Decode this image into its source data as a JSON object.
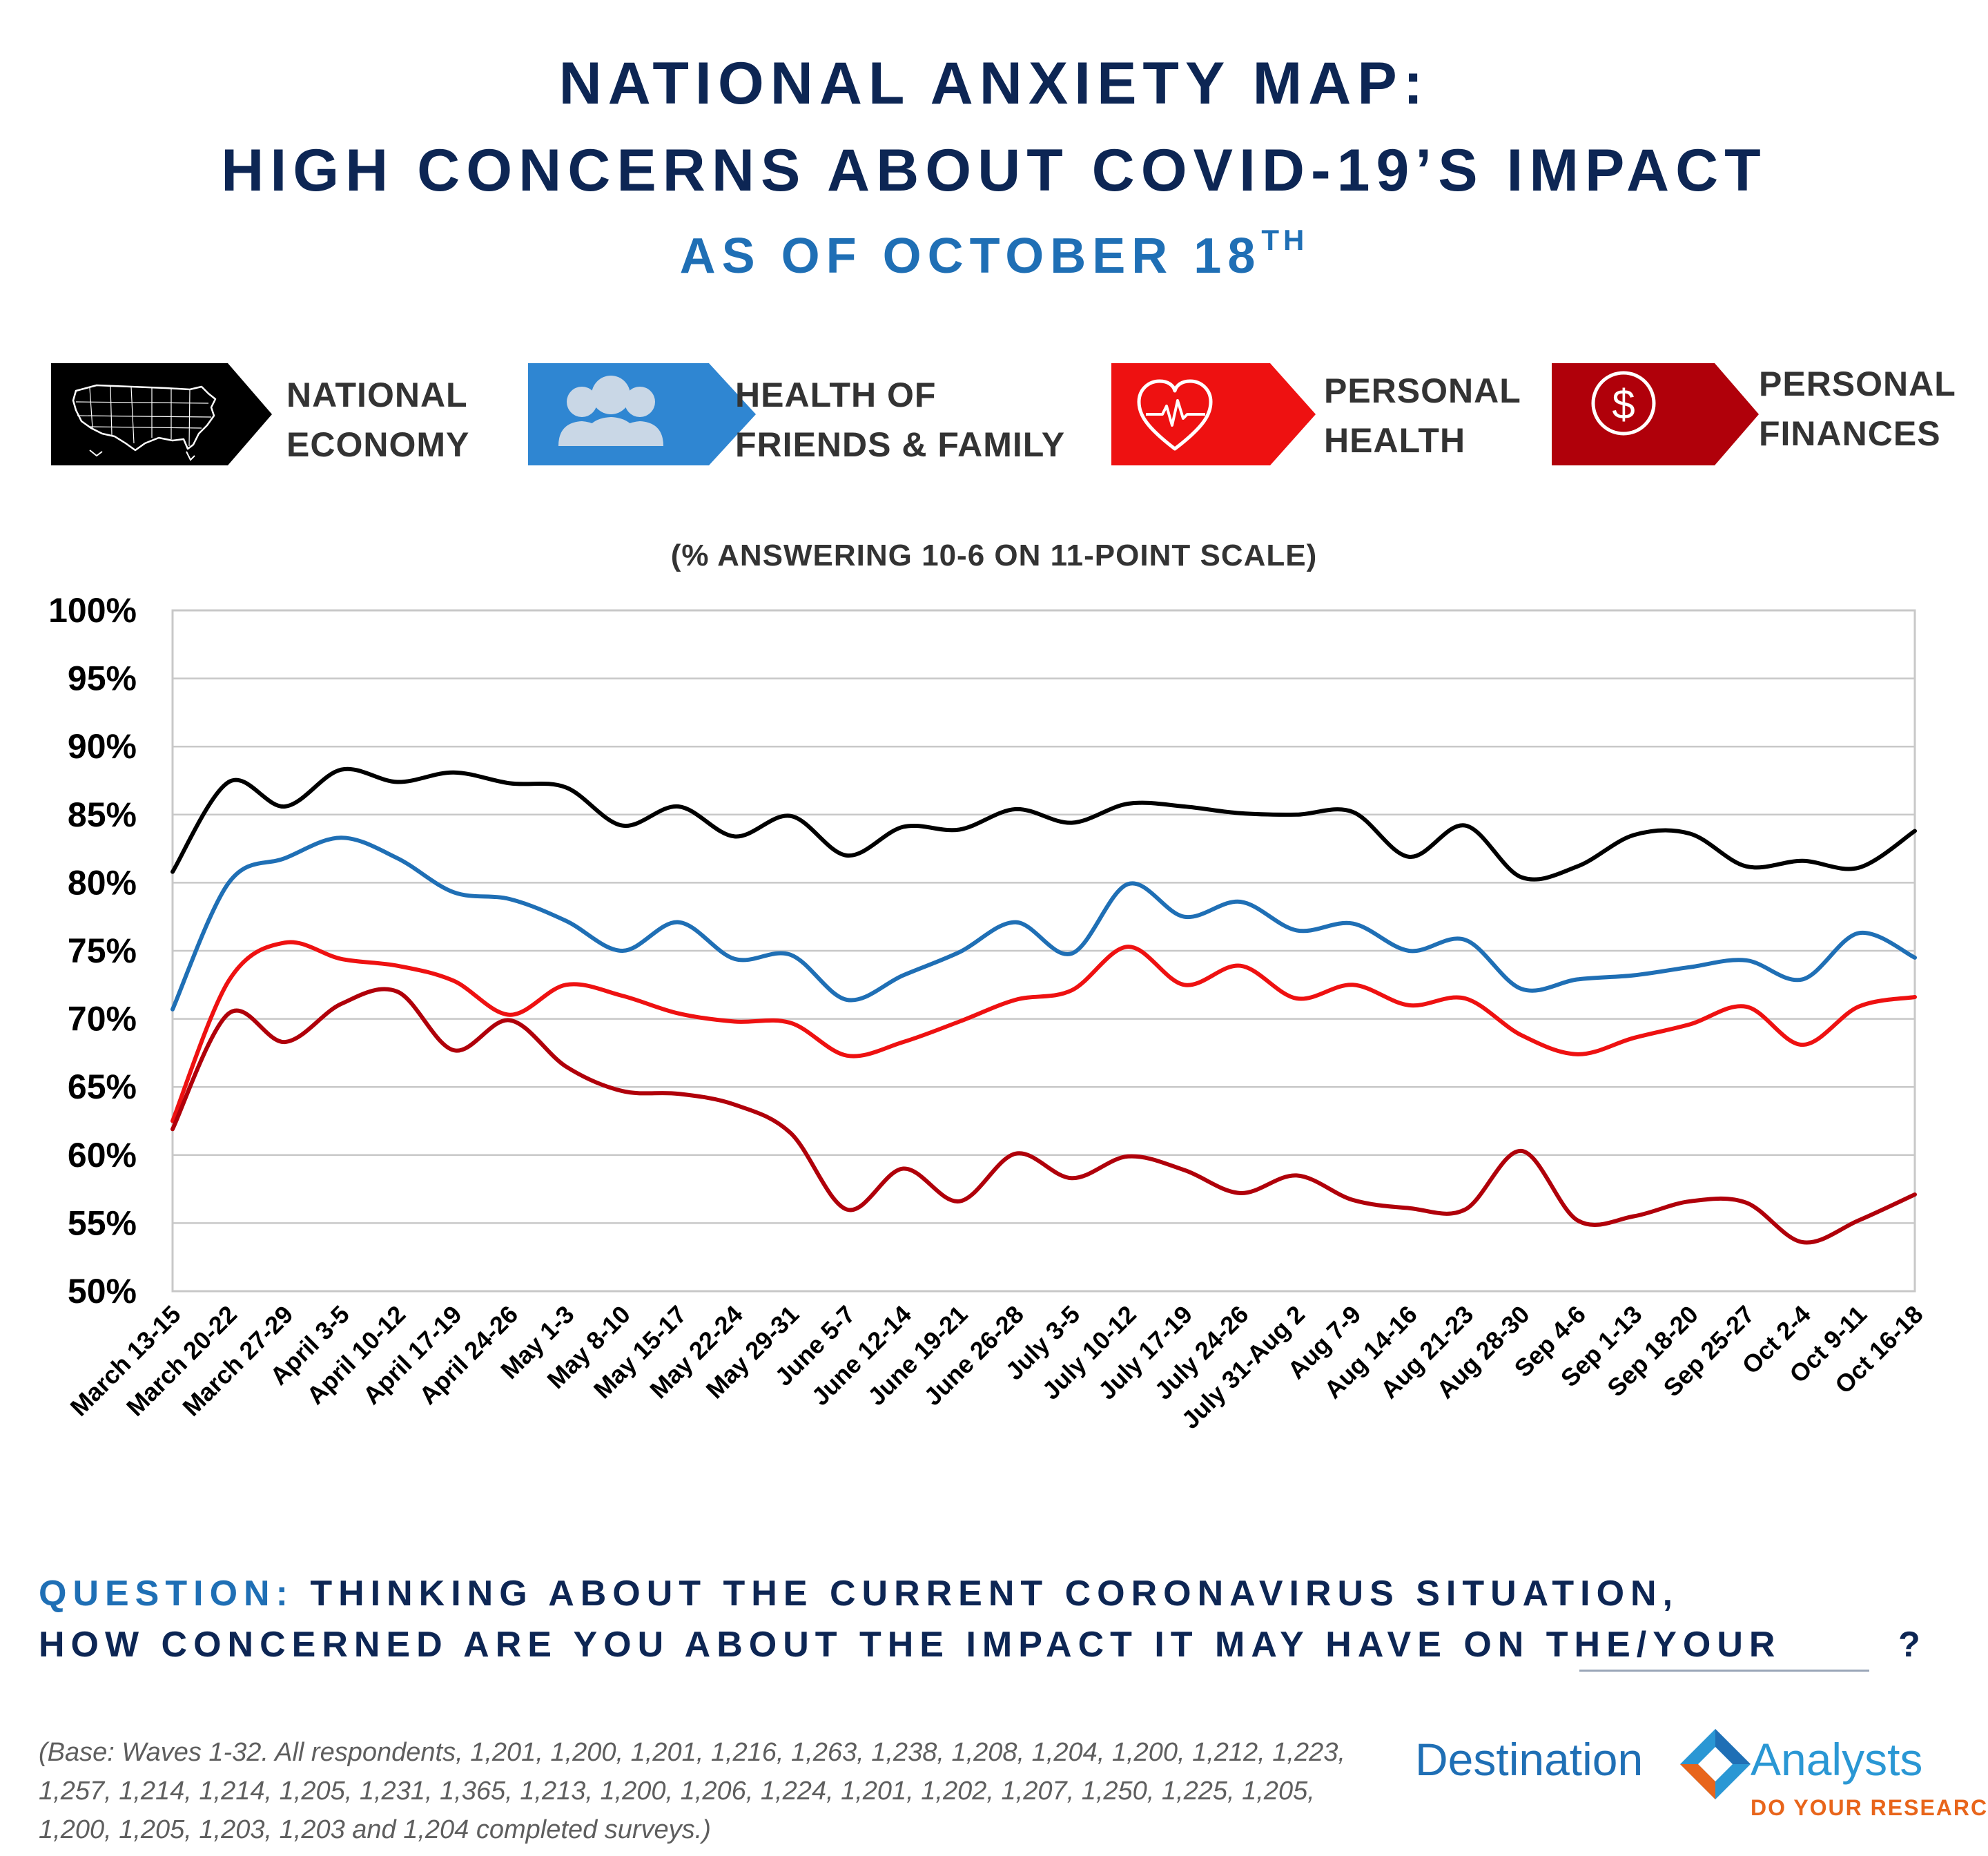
{
  "header": {
    "title_line1": "NATIONAL ANXIETY MAP:",
    "title_line2": "HIGH CONCERNS ABOUT COVID-19’S IMPACT",
    "title_line3": "AS OF OCTOBER 18",
    "title_line3_sup": "TH"
  },
  "legend": [
    {
      "line1": "NATIONAL",
      "line2": "ECONOMY",
      "color": "#000000",
      "icon": "us-map-icon"
    },
    {
      "line1": "HEALTH OF",
      "line2": "FRIENDS & FAMILY",
      "color": "#2f86d2",
      "icon": "people-icon"
    },
    {
      "line1": "PERSONAL",
      "line2": "HEALTH",
      "color": "#ee1111",
      "icon": "heart-pulse-icon"
    },
    {
      "line1": "PERSONAL",
      "line2": "FINANCES",
      "color": "#b0000a",
      "icon": "dollar-icon"
    }
  ],
  "chart_data": {
    "type": "line",
    "subtitle": "(% ANSWERING 10-6 ON 11-POINT SCALE)",
    "categories": [
      "March 13-15",
      "March 20-22",
      "March 27-29",
      "April 3-5",
      "April 10-12",
      "April 17-19",
      "April 24-26",
      "May 1-3",
      "May 8-10",
      "May 15-17",
      "May 22-24",
      "May 29-31",
      "June 5-7",
      "June 12-14",
      "June 19-21",
      "June 26-28",
      "July 3-5",
      "July 10-12",
      "July 17-19",
      "July 24-26",
      "July 31-Aug 2",
      "Aug 7-9",
      "Aug 14-16",
      "Aug 21-23",
      "Aug 28-30",
      "Sep 4-6",
      "Sep 1-13",
      "Sep 18-20",
      "Sep 25-27",
      "Oct 2-4",
      "Oct 9-11",
      "Oct 16-18"
    ],
    "ylim": [
      50,
      100
    ],
    "yticks": [
      50,
      55,
      60,
      65,
      70,
      75,
      80,
      85,
      90,
      95,
      100
    ],
    "ytick_suffix": "%",
    "grid": true,
    "series": [
      {
        "name": "NATIONAL ECONOMY",
        "color": "#000000",
        "values": [
          80.8,
          87.4,
          85.6,
          88.3,
          87.4,
          88.1,
          87.3,
          87.0,
          84.2,
          85.6,
          83.4,
          84.9,
          82.0,
          84.1,
          83.9,
          85.4,
          84.4,
          85.8,
          85.6,
          85.1,
          85.0,
          85.2,
          81.9,
          84.2,
          80.4,
          81.2,
          83.5,
          83.6,
          81.2,
          81.6,
          81.1,
          83.8
        ]
      },
      {
        "name": "HEALTH OF FRIENDS & FAMILY",
        "color": "#1f6fb5",
        "values": [
          70.7,
          80.0,
          81.8,
          83.3,
          81.8,
          79.3,
          78.8,
          77.2,
          75.0,
          77.1,
          74.4,
          74.7,
          71.4,
          73.2,
          74.9,
          77.1,
          74.8,
          79.9,
          77.5,
          78.6,
          76.5,
          77.0,
          75.0,
          75.8,
          72.2,
          72.9,
          73.2,
          73.8,
          74.3,
          72.9,
          76.3,
          74.5
        ]
      },
      {
        "name": "PERSONAL HEALTH",
        "color": "#ee1111",
        "values": [
          62.5,
          72.8,
          75.6,
          74.4,
          73.9,
          72.8,
          70.3,
          72.5,
          71.7,
          70.4,
          69.8,
          69.7,
          67.3,
          68.3,
          69.8,
          71.4,
          72.1,
          75.3,
          72.5,
          73.9,
          71.5,
          72.5,
          71.0,
          71.5,
          68.8,
          67.4,
          68.6,
          69.6,
          70.9,
          68.1,
          70.9,
          71.6
        ]
      },
      {
        "name": "PERSONAL FINANCES",
        "color": "#b0000a",
        "values": [
          61.9,
          70.4,
          68.3,
          71.1,
          72.0,
          67.7,
          69.9,
          66.5,
          64.7,
          64.5,
          63.7,
          61.6,
          56.0,
          59.0,
          56.6,
          60.1,
          58.3,
          59.9,
          58.9,
          57.2,
          58.5,
          56.7,
          56.1,
          56.0,
          60.3,
          55.2,
          55.5,
          56.6,
          56.5,
          53.6,
          55.2,
          57.1
        ]
      }
    ]
  },
  "question": {
    "prefix": "QUESTION:",
    "line1_rest": "THINKING ABOUT THE CURRENT CORONAVIRUS SITUATION,",
    "line2": "HOW CONCERNED ARE YOU ABOUT THE IMPACT IT MAY HAVE ON THE/YOUR",
    "mark": "?"
  },
  "footnote": "(Base: Waves 1-32. All respondents, 1,201, 1,200, 1,201, 1,216, 1,263, 1,238, 1,208, 1,204, 1,200, 1,212, 1,223, 1,257, 1,214, 1,214, 1,205, 1,231, 1,365, 1,213, 1,200, 1,206, 1,224, 1,201, 1,202, 1,207, 1,250, 1,225, 1,205, 1,200, 1,205, 1,203, 1,203 and 1,204 completed surveys.)",
  "logo": {
    "left_word": "Destination",
    "right_word": "Analysts",
    "tagline": "DO YOUR RESEARCH",
    "colors": {
      "navy": "#1f6fb5",
      "light_blue": "#2a97d4",
      "orange": "#e8651b"
    }
  }
}
